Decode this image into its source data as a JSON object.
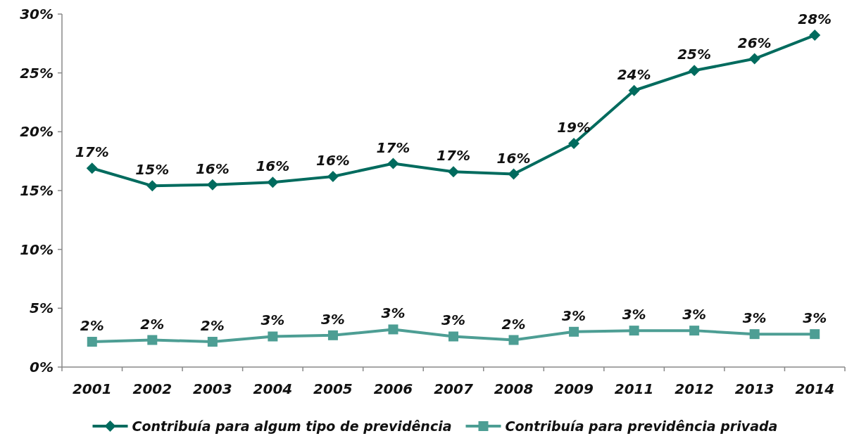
{
  "chart_data": {
    "type": "line",
    "categories": [
      "2001",
      "2002",
      "2003",
      "2004",
      "2005",
      "2006",
      "2007",
      "2008",
      "2009",
      "2011",
      "2012",
      "2013",
      "2014"
    ],
    "series": [
      {
        "name": "Contribuía para algum tipo de previdência",
        "color": "#006b5e",
        "marker": "diamond",
        "values": [
          16.9,
          15.4,
          15.5,
          15.7,
          16.2,
          17.3,
          16.6,
          16.4,
          19.0,
          23.5,
          25.2,
          26.2,
          28.2
        ],
        "value_labels": [
          "17%",
          "15%",
          "16%",
          "16%",
          "16%",
          "17%",
          "17%",
          "16%",
          "19%",
          "24%",
          "25%",
          "26%",
          "28%"
        ]
      },
      {
        "name": "Contribuía para previdência privada",
        "color": "#4d9e94",
        "marker": "square",
        "values": [
          2.15,
          2.3,
          2.15,
          2.6,
          2.7,
          3.2,
          2.6,
          2.3,
          3.0,
          3.1,
          3.1,
          2.8,
          2.8
        ],
        "value_labels": [
          "2%",
          "2%",
          "2%",
          "3%",
          "3%",
          "3%",
          "3%",
          "2%",
          "3%",
          "3%",
          "3%",
          "3%",
          "3%"
        ]
      }
    ],
    "ylim": [
      0,
      30
    ],
    "yticks": [
      {
        "value": 0,
        "label": "0%"
      },
      {
        "value": 5,
        "label": "5%"
      },
      {
        "value": 10,
        "label": "10%"
      },
      {
        "value": 15,
        "label": "15%"
      },
      {
        "value": 20,
        "label": "20%"
      },
      {
        "value": 25,
        "label": "25%"
      },
      {
        "value": 30,
        "label": "30%"
      }
    ],
    "grid": false,
    "legend": "bottom",
    "line_style": "solid"
  }
}
